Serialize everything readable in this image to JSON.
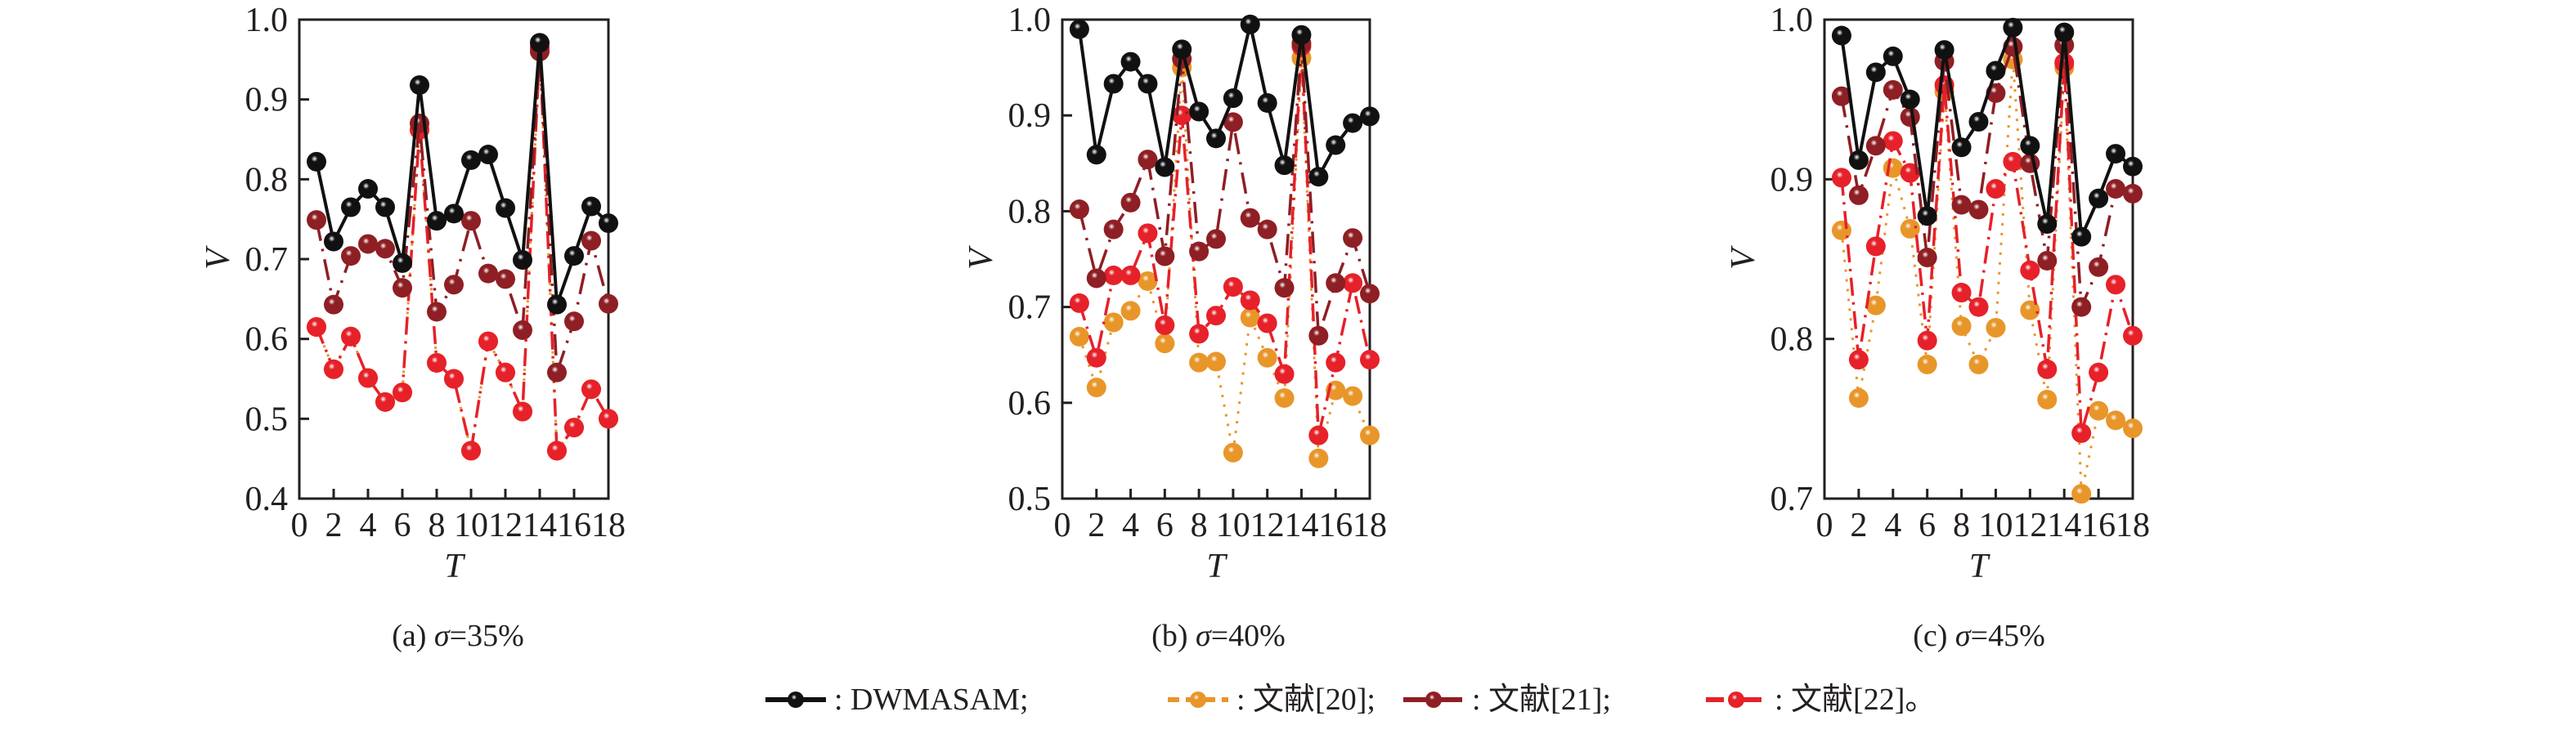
{
  "colors": {
    "DWMASAM": "#111111",
    "ref20": "#e8962a",
    "ref21": "#8e1f24",
    "ref22": "#e62129"
  },
  "legend": [
    {
      "key": "DWMASAM",
      "label": ": DWMASAM;"
    },
    {
      "key": "ref20",
      "label": ": 文献[20];"
    },
    {
      "key": "ref21",
      "label": ": 文献[21];"
    },
    {
      "key": "ref22",
      "label": ": 文献[22]。"
    }
  ],
  "chart_data": [
    {
      "type": "line",
      "title": "(a) σ=35%",
      "caption_prefix": "(a) ",
      "sigma": "σ",
      "caption_value": "=35%",
      "xlabel": "T",
      "ylabel": "V",
      "xlim": [
        0,
        18
      ],
      "ylim": [
        0.4,
        1.0
      ],
      "xticks": [
        0,
        2,
        4,
        6,
        8,
        10,
        12,
        14,
        16,
        18
      ],
      "yticks": [
        "0.4",
        "0.5",
        "0.6",
        "0.7",
        "0.8",
        "0.9",
        "1.0"
      ],
      "x": [
        1,
        2,
        3,
        4,
        5,
        6,
        7,
        8,
        9,
        10,
        11,
        12,
        13,
        14,
        15,
        16,
        17,
        18
      ],
      "series": [
        {
          "key": "ref20",
          "name": "文献[20]",
          "values": [
            0.615,
            0.562,
            0.603,
            0.551,
            0.521,
            0.533,
            0.862,
            0.57,
            0.55,
            0.46,
            0.597,
            0.558,
            0.509,
            0.965,
            0.46,
            0.489,
            0.537,
            0.5
          ]
        },
        {
          "key": "ref22",
          "name": "文献[22]",
          "values": [
            0.615,
            0.562,
            0.603,
            0.551,
            0.521,
            0.533,
            0.862,
            0.57,
            0.55,
            0.46,
            0.597,
            0.558,
            0.509,
            0.965,
            0.46,
            0.489,
            0.537,
            0.5
          ]
        },
        {
          "key": "ref21",
          "name": "文献[21]",
          "values": [
            0.749,
            0.643,
            0.704,
            0.719,
            0.713,
            0.664,
            0.87,
            0.634,
            0.668,
            0.748,
            0.682,
            0.675,
            0.611,
            0.96,
            0.558,
            0.622,
            0.723,
            0.644
          ]
        },
        {
          "key": "DWMASAM",
          "name": "DWMASAM",
          "values": [
            0.822,
            0.722,
            0.765,
            0.788,
            0.765,
            0.695,
            0.918,
            0.748,
            0.757,
            0.824,
            0.831,
            0.764,
            0.699,
            0.971,
            0.643,
            0.704,
            0.766,
            0.745
          ]
        }
      ]
    },
    {
      "type": "line",
      "title": "(b) σ=40%",
      "caption_prefix": "(b) ",
      "sigma": "σ",
      "caption_value": "=40%",
      "xlabel": "T",
      "ylabel": "V",
      "xlim": [
        0,
        18
      ],
      "ylim": [
        0.5,
        1.0
      ],
      "xticks": [
        0,
        2,
        4,
        6,
        8,
        10,
        12,
        14,
        16,
        18
      ],
      "yticks": [
        "0.5",
        "0.6",
        "0.7",
        "0.8",
        "0.9",
        "1.0"
      ],
      "x": [
        1,
        2,
        3,
        4,
        5,
        6,
        7,
        8,
        9,
        10,
        11,
        12,
        13,
        14,
        15,
        16,
        17,
        18
      ],
      "series": [
        {
          "key": "ref20",
          "name": "文献[20]",
          "values": [
            0.669,
            0.616,
            0.684,
            0.696,
            0.727,
            0.662,
            0.95,
            0.642,
            0.643,
            0.548,
            0.689,
            0.647,
            0.605,
            0.96,
            0.542,
            0.613,
            0.607,
            0.566
          ]
        },
        {
          "key": "ref22",
          "name": "文献[22]",
          "values": [
            0.704,
            0.647,
            0.733,
            0.733,
            0.777,
            0.681,
            0.9,
            0.672,
            0.691,
            0.721,
            0.707,
            0.683,
            0.63,
            0.972,
            0.566,
            0.642,
            0.725,
            0.645
          ]
        },
        {
          "key": "ref21",
          "name": "文献[21]",
          "values": [
            0.802,
            0.73,
            0.781,
            0.809,
            0.854,
            0.753,
            0.959,
            0.758,
            0.771,
            0.893,
            0.793,
            0.781,
            0.72,
            0.975,
            0.67,
            0.725,
            0.772,
            0.714
          ]
        },
        {
          "key": "DWMASAM",
          "name": "DWMASAM",
          "values": [
            0.99,
            0.859,
            0.933,
            0.956,
            0.933,
            0.846,
            0.969,
            0.904,
            0.876,
            0.918,
            0.995,
            0.913,
            0.848,
            0.984,
            0.836,
            0.869,
            0.892,
            0.899
          ]
        }
      ]
    },
    {
      "type": "line",
      "title": "(c) σ=45%",
      "caption_prefix": "(c) ",
      "sigma": "σ",
      "caption_value": "=45%",
      "xlabel": "T",
      "ylabel": "V",
      "xlim": [
        0,
        18
      ],
      "ylim": [
        0.7,
        1.0
      ],
      "xticks": [
        0,
        2,
        4,
        6,
        8,
        10,
        12,
        14,
        16,
        18
      ],
      "yticks": [
        "0.7",
        "0.8",
        "0.9",
        "1.0"
      ],
      "x": [
        1,
        2,
        3,
        4,
        5,
        6,
        7,
        8,
        9,
        10,
        11,
        12,
        13,
        14,
        15,
        16,
        17,
        18
      ],
      "series": [
        {
          "key": "ref20",
          "name": "文献[20]",
          "values": [
            0.868,
            0.763,
            0.821,
            0.907,
            0.869,
            0.784,
            0.955,
            0.808,
            0.784,
            0.807,
            0.975,
            0.818,
            0.762,
            0.97,
            0.703,
            0.755,
            0.749,
            0.744
          ]
        },
        {
          "key": "ref22",
          "name": "文献[22]",
          "values": [
            0.901,
            0.787,
            0.858,
            0.924,
            0.904,
            0.799,
            0.959,
            0.829,
            0.82,
            0.894,
            0.911,
            0.843,
            0.781,
            0.973,
            0.741,
            0.779,
            0.834,
            0.802
          ]
        },
        {
          "key": "ref21",
          "name": "文献[21]",
          "values": [
            0.952,
            0.89,
            0.921,
            0.956,
            0.939,
            0.851,
            0.974,
            0.884,
            0.881,
            0.954,
            0.983,
            0.91,
            0.849,
            0.984,
            0.82,
            0.845,
            0.894,
            0.891
          ]
        },
        {
          "key": "DWMASAM",
          "name": "DWMASAM",
          "values": [
            0.99,
            0.912,
            0.967,
            0.977,
            0.95,
            0.877,
            0.981,
            0.92,
            0.936,
            0.968,
            0.995,
            0.921,
            0.872,
            0.992,
            0.864,
            0.888,
            0.916,
            0.908
          ]
        }
      ]
    }
  ]
}
